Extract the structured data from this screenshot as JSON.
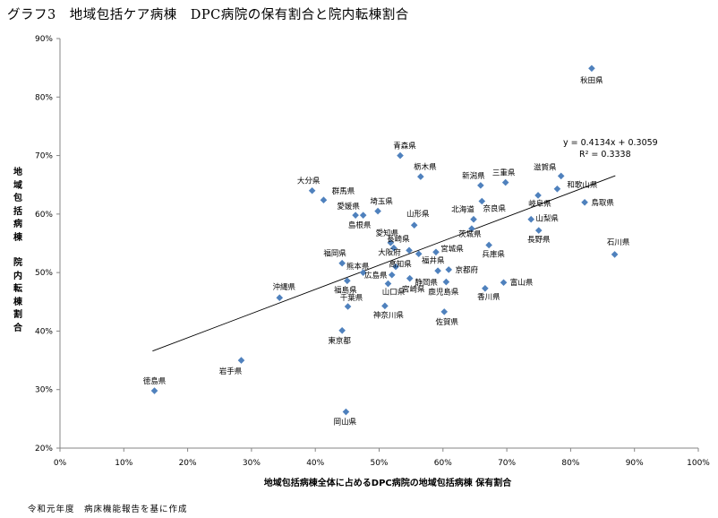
{
  "title": "グラフ3　地域包括ケア病棟　DPC病院の保有割合と院内転棟割合",
  "source_note": "令和元年度　病床機能報告を基に作成",
  "chart_data": {
    "type": "scatter",
    "title": "グラフ3　地域包括ケア病棟　DPC病院の保有割合と院内転棟割合",
    "xlabel": "地域包括病棟全体に占めるDPC病院の地域包括病棟 保有割合",
    "ylabel_lines": [
      "地",
      "域",
      "包",
      "括",
      "病",
      "棟",
      "",
      "院",
      "内",
      "転",
      "棟",
      "割",
      "合"
    ],
    "xlim": [
      0,
      100
    ],
    "ylim": [
      20,
      90
    ],
    "x_ticks": [
      "0%",
      "10%",
      "20%",
      "30%",
      "40%",
      "50%",
      "60%",
      "70%",
      "80%",
      "90%",
      "100%"
    ],
    "y_ticks": [
      "20%",
      "30%",
      "40%",
      "50%",
      "60%",
      "70%",
      "80%",
      "90%"
    ],
    "grid": false,
    "marker_color": "#4F81BD",
    "trendline": {
      "equation": "y = 0.4134x + 0.3059",
      "r2": "R² = 0.3338",
      "slope": 0.4134,
      "intercept": 0.3059,
      "x_range": [
        14.5,
        87
      ]
    },
    "points": [
      {
        "name": "秋田県",
        "x": 83.3,
        "y": 84.9
      },
      {
        "name": "青森県",
        "x": 53.3,
        "y": 70.0
      },
      {
        "name": "栃木県",
        "x": 56.5,
        "y": 66.4
      },
      {
        "name": "三重県",
        "x": 69.8,
        "y": 65.4
      },
      {
        "name": "新潟県",
        "x": 65.9,
        "y": 64.9
      },
      {
        "name": "滋賀県",
        "x": 78.5,
        "y": 66.5
      },
      {
        "name": "和歌山県",
        "x": 77.9,
        "y": 64.3
      },
      {
        "name": "岐阜県",
        "x": 74.9,
        "y": 63.2
      },
      {
        "name": "鳥取県",
        "x": 82.2,
        "y": 62.0
      },
      {
        "name": "大分県",
        "x": 39.5,
        "y": 64.0
      },
      {
        "name": "群馬県",
        "x": 41.3,
        "y": 62.4
      },
      {
        "name": "埼玉県",
        "x": 49.8,
        "y": 60.5
      },
      {
        "name": "愛媛県",
        "x": 46.3,
        "y": 59.8
      },
      {
        "name": "島根県",
        "x": 47.5,
        "y": 59.8
      },
      {
        "name": "山形県",
        "x": 55.5,
        "y": 58.1
      },
      {
        "name": "北海道",
        "x": 64.8,
        "y": 59.1
      },
      {
        "name": "奈良県",
        "x": 66.1,
        "y": 62.2
      },
      {
        "name": "山梨県",
        "x": 73.8,
        "y": 59.1
      },
      {
        "name": "長野県",
        "x": 75.0,
        "y": 57.2
      },
      {
        "name": "茨城県",
        "x": 64.5,
        "y": 57.5
      },
      {
        "name": "石川県",
        "x": 86.9,
        "y": 53.1
      },
      {
        "name": "兵庫県",
        "x": 67.2,
        "y": 54.7
      },
      {
        "name": "愛知県",
        "x": 51.8,
        "y": 55.1
      },
      {
        "name": "長崎県",
        "x": 52.3,
        "y": 54.2
      },
      {
        "name": "宮城県",
        "x": 58.9,
        "y": 53.5
      },
      {
        "name": "大阪府",
        "x": 54.7,
        "y": 53.8
      },
      {
        "name": "福井県",
        "x": 56.2,
        "y": 53.2
      },
      {
        "name": "福岡県",
        "x": 44.2,
        "y": 51.6
      },
      {
        "name": "熊本県",
        "x": 47.5,
        "y": 50.0
      },
      {
        "name": "高知県",
        "x": 52.6,
        "y": 51.0
      },
      {
        "name": "京都府",
        "x": 60.9,
        "y": 50.5
      },
      {
        "name": "静岡県",
        "x": 59.2,
        "y": 50.3
      },
      {
        "name": "広島県",
        "x": 52.0,
        "y": 49.6
      },
      {
        "name": "宮崎県",
        "x": 54.8,
        "y": 49.0
      },
      {
        "name": "福島県",
        "x": 45.0,
        "y": 48.6
      },
      {
        "name": "山口県",
        "x": 51.4,
        "y": 48.1
      },
      {
        "name": "富山県",
        "x": 69.5,
        "y": 48.3
      },
      {
        "name": "鹿児島県",
        "x": 60.5,
        "y": 48.4
      },
      {
        "name": "香川県",
        "x": 66.6,
        "y": 47.3
      },
      {
        "name": "沖縄県",
        "x": 34.4,
        "y": 45.7
      },
      {
        "name": "千葉県",
        "x": 45.1,
        "y": 44.2
      },
      {
        "name": "神奈川県",
        "x": 50.9,
        "y": 44.3
      },
      {
        "name": "佐賀県",
        "x": 60.2,
        "y": 43.3
      },
      {
        "name": "東京都",
        "x": 44.2,
        "y": 40.1
      },
      {
        "name": "岩手県",
        "x": 28.4,
        "y": 35.0
      },
      {
        "name": "徳島県",
        "x": 14.8,
        "y": 29.8
      },
      {
        "name": "岡山県",
        "x": 44.8,
        "y": 26.2
      }
    ]
  }
}
